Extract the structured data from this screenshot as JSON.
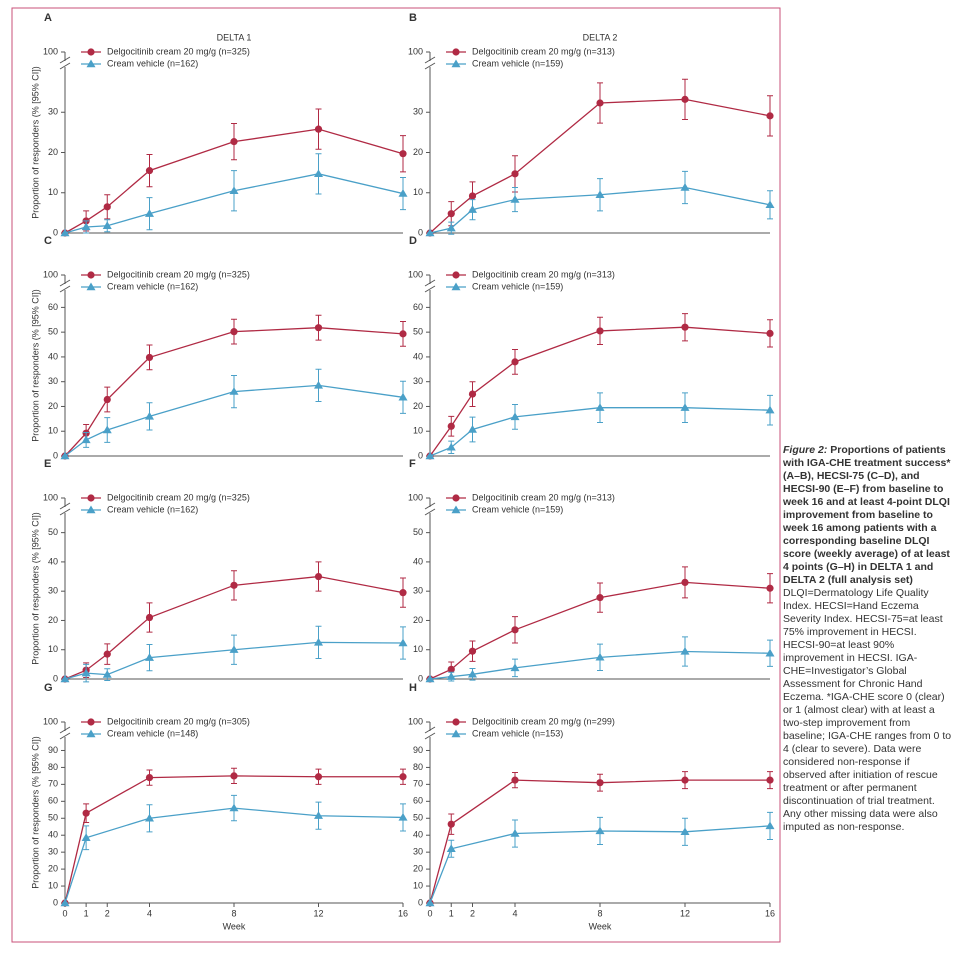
{
  "chart_data": [
    {
      "type": "line",
      "panel": "A",
      "title": "DELTA 1",
      "ylabel": "Proportion of responders (% [95% CI])",
      "x": [
        0,
        1,
        2,
        4,
        8,
        12,
        16
      ],
      "xlim": [
        0,
        16
      ],
      "ylim": [
        0,
        100
      ],
      "yticks": [
        0,
        10,
        20,
        30,
        100
      ],
      "y_break": [
        40,
        100
      ],
      "series": [
        {
          "name": "Delgocitinib cream 20 mg/g (n=325)",
          "color": "#b02a44",
          "marker": "circle",
          "values": [
            0,
            3,
            6.5,
            15.5,
            22.7,
            25.8,
            19.7
          ],
          "errors": [
            0,
            2.5,
            3,
            4,
            4.5,
            5,
            4.5
          ]
        },
        {
          "name": "Cream vehicle (n=162)",
          "color": "#4aa0c8",
          "marker": "triangle",
          "values": [
            0,
            1.5,
            1.8,
            4.8,
            10.5,
            14.7,
            9.8
          ],
          "errors": [
            0,
            1.5,
            1.5,
            4,
            5,
            5,
            4
          ]
        }
      ]
    },
    {
      "type": "line",
      "panel": "B",
      "title": "DELTA 2",
      "x": [
        0,
        1,
        2,
        4,
        8,
        12,
        16
      ],
      "xlim": [
        0,
        16
      ],
      "ylim": [
        0,
        100
      ],
      "yticks": [
        0,
        10,
        20,
        30,
        100
      ],
      "y_break": [
        40,
        100
      ],
      "series": [
        {
          "name": "Delgocitinib cream 20 mg/g (n=313)",
          "color": "#b02a44",
          "marker": "circle",
          "values": [
            0,
            4.8,
            9.2,
            14.7,
            32.3,
            33.2,
            29.1
          ],
          "errors": [
            0,
            3,
            3.5,
            4.5,
            5,
            5,
            5
          ]
        },
        {
          "name": "Cream vehicle (n=159)",
          "color": "#4aa0c8",
          "marker": "triangle",
          "values": [
            0,
            1.2,
            5.8,
            8.3,
            9.5,
            11.3,
            7
          ],
          "errors": [
            0,
            1.5,
            2.5,
            3,
            4,
            4,
            3.5
          ]
        }
      ]
    },
    {
      "type": "line",
      "panel": "C",
      "ylabel": "Proportion of responders (% [95% CI])",
      "x": [
        0,
        1,
        2,
        4,
        8,
        12,
        16
      ],
      "xlim": [
        0,
        16
      ],
      "ylim": [
        0,
        100
      ],
      "yticks": [
        0,
        10,
        20,
        30,
        40,
        50,
        60,
        100
      ],
      "y_break": [
        65,
        100
      ],
      "series": [
        {
          "name": "Delgocitinib cream 20 mg/g (n=325)",
          "color": "#b02a44",
          "marker": "circle",
          "values": [
            0,
            9.2,
            22.8,
            39.8,
            50.2,
            51.8,
            49.3
          ],
          "errors": [
            0,
            3.5,
            5,
            5,
            5,
            5,
            5
          ]
        },
        {
          "name": "Cream vehicle (n=162)",
          "color": "#4aa0c8",
          "marker": "triangle",
          "values": [
            0,
            6.5,
            10.5,
            16,
            26,
            28.5,
            23.7
          ],
          "errors": [
            0,
            3,
            5,
            5.5,
            6.5,
            6.5,
            6.5
          ]
        }
      ]
    },
    {
      "type": "line",
      "panel": "D",
      "x": [
        0,
        1,
        2,
        4,
        8,
        12,
        16
      ],
      "xlim": [
        0,
        16
      ],
      "ylim": [
        0,
        100
      ],
      "yticks": [
        0,
        10,
        20,
        30,
        40,
        50,
        60,
        100
      ],
      "y_break": [
        65,
        100
      ],
      "series": [
        {
          "name": "Delgocitinib cream 20 mg/g (n=313)",
          "color": "#b02a44",
          "marker": "circle",
          "values": [
            0,
            12,
            25,
            38,
            50.5,
            52,
            49.5
          ],
          "errors": [
            0,
            4,
            5,
            5,
            5.5,
            5.5,
            5.5
          ]
        },
        {
          "name": "Cream vehicle (n=159)",
          "color": "#4aa0c8",
          "marker": "triangle",
          "values": [
            0,
            3.5,
            10.7,
            15.8,
            19.5,
            19.5,
            18.5
          ],
          "errors": [
            0,
            2.5,
            5,
            5,
            6,
            6,
            6
          ]
        }
      ]
    },
    {
      "type": "line",
      "panel": "E",
      "ylabel": "Proportion of responders (% [95% CI])",
      "x": [
        0,
        1,
        2,
        4,
        8,
        12,
        16
      ],
      "xlim": [
        0,
        16
      ],
      "ylim": [
        0,
        100
      ],
      "yticks": [
        0,
        10,
        20,
        30,
        40,
        50,
        100
      ],
      "y_break": [
        55,
        100
      ],
      "series": [
        {
          "name": "Delgocitinib cream 20 mg/g (n=325)",
          "color": "#b02a44",
          "marker": "circle",
          "values": [
            0,
            3,
            8.5,
            21,
            32,
            35,
            29.5
          ],
          "errors": [
            0,
            2.5,
            3.5,
            5,
            5,
            5,
            5
          ]
        },
        {
          "name": "Cream vehicle (n=162)",
          "color": "#4aa0c8",
          "marker": "triangle",
          "values": [
            0,
            2,
            1.5,
            7.3,
            10,
            12.5,
            12.3
          ],
          "errors": [
            0,
            3,
            2,
            4.5,
            5,
            5.5,
            5.5
          ]
        }
      ]
    },
    {
      "type": "line",
      "panel": "F",
      "x": [
        0,
        1,
        2,
        4,
        8,
        12,
        16
      ],
      "xlim": [
        0,
        16
      ],
      "ylim": [
        0,
        100
      ],
      "yticks": [
        0,
        10,
        20,
        30,
        40,
        50,
        100
      ],
      "y_break": [
        55,
        100
      ],
      "series": [
        {
          "name": "Delgocitinib cream 20 mg/g (n=313)",
          "color": "#b02a44",
          "marker": "circle",
          "values": [
            0,
            3.3,
            9.5,
            16.8,
            27.8,
            33,
            31
          ],
          "errors": [
            0,
            2.5,
            3.5,
            4.5,
            5,
            5.3,
            5
          ]
        },
        {
          "name": "Cream vehicle (n=159)",
          "color": "#4aa0c8",
          "marker": "triangle",
          "values": [
            0,
            0.8,
            1.6,
            3.8,
            7.4,
            9.4,
            8.8
          ],
          "errors": [
            0,
            1.5,
            2,
            3,
            4.5,
            5,
            4.5
          ]
        }
      ]
    },
    {
      "type": "line",
      "panel": "G",
      "ylabel": "Proportion of responders (% [95% CI])",
      "xlabel": "Week",
      "x": [
        0,
        1,
        4,
        8,
        12,
        16
      ],
      "xlim": [
        0,
        16
      ],
      "xticks": [
        0,
        1,
        2,
        4,
        8,
        12,
        16
      ],
      "ylim": [
        0,
        100
      ],
      "yticks": [
        0,
        10,
        20,
        30,
        40,
        50,
        60,
        70,
        80,
        90,
        100
      ],
      "y_break": [
        95,
        100
      ],
      "series": [
        {
          "name": "Delgocitinib cream 20 mg/g (n=305)",
          "color": "#b02a44",
          "marker": "circle",
          "values": [
            0,
            53,
            74,
            75,
            74.5,
            74.5
          ],
          "errors": [
            0,
            5.5,
            4.5,
            4.5,
            4.5,
            4.5
          ]
        },
        {
          "name": "Cream vehicle (n=148)",
          "color": "#4aa0c8",
          "marker": "triangle",
          "values": [
            0,
            38.5,
            50,
            56,
            51.5,
            50.5
          ],
          "errors": [
            0,
            7,
            8,
            7.5,
            8,
            8
          ]
        }
      ]
    },
    {
      "type": "line",
      "panel": "H",
      "xlabel": "Week",
      "x": [
        0,
        1,
        4,
        8,
        12,
        16
      ],
      "xlim": [
        0,
        16
      ],
      "xticks": [
        0,
        1,
        2,
        4,
        8,
        12,
        16
      ],
      "ylim": [
        0,
        100
      ],
      "yticks": [
        0,
        10,
        20,
        30,
        40,
        50,
        60,
        70,
        80,
        90,
        100
      ],
      "y_break": [
        95,
        100
      ],
      "series": [
        {
          "name": "Delgocitinib cream 20 mg/g (n=299)",
          "color": "#b02a44",
          "marker": "circle",
          "values": [
            0,
            46.5,
            72.5,
            71,
            72.5,
            72.5
          ],
          "errors": [
            0,
            6,
            4.5,
            5,
            5,
            5
          ]
        },
        {
          "name": "Cream vehicle (n=153)",
          "color": "#4aa0c8",
          "marker": "triangle",
          "values": [
            0,
            32,
            41,
            42.5,
            42,
            45.5
          ],
          "errors": [
            0,
            5,
            8,
            8,
            8,
            8
          ]
        }
      ]
    }
  ],
  "caption": {
    "label": "Figure 2:",
    "title": "Proportions of patients with IGA-CHE treatment success* (A–B), HECSI-75 (C–D), and HECSI-90 (E–F) from baseline to week 16 and at least 4-point DLQI improvement from baseline to week 16 among patients with a corresponding baseline DLQI score (weekly average) of at least 4 points (G–H) in DELTA 1 and DELTA 2 (full analysis set)",
    "text": "DLQI=Dermatology Life Quality Index. HECSI=Hand Eczema Severity Index. HECSI-75=at least 75% improvement in HECSI. HECSI-90=at least 90% improvement in HECSI. IGA-CHE=Investigator’s Global Assessment for Chronic Hand Eczema. *IGA-CHE score 0 (clear) or 1 (almost clear) with at least a two-step improvement from baseline; IGA-CHE ranges from 0 to 4 (clear to severe). Data were considered non-response if observed after initiation of rescue treatment or after permanent discontinuation of trial treatment. Any other missing data were also imputed as non-response."
  }
}
